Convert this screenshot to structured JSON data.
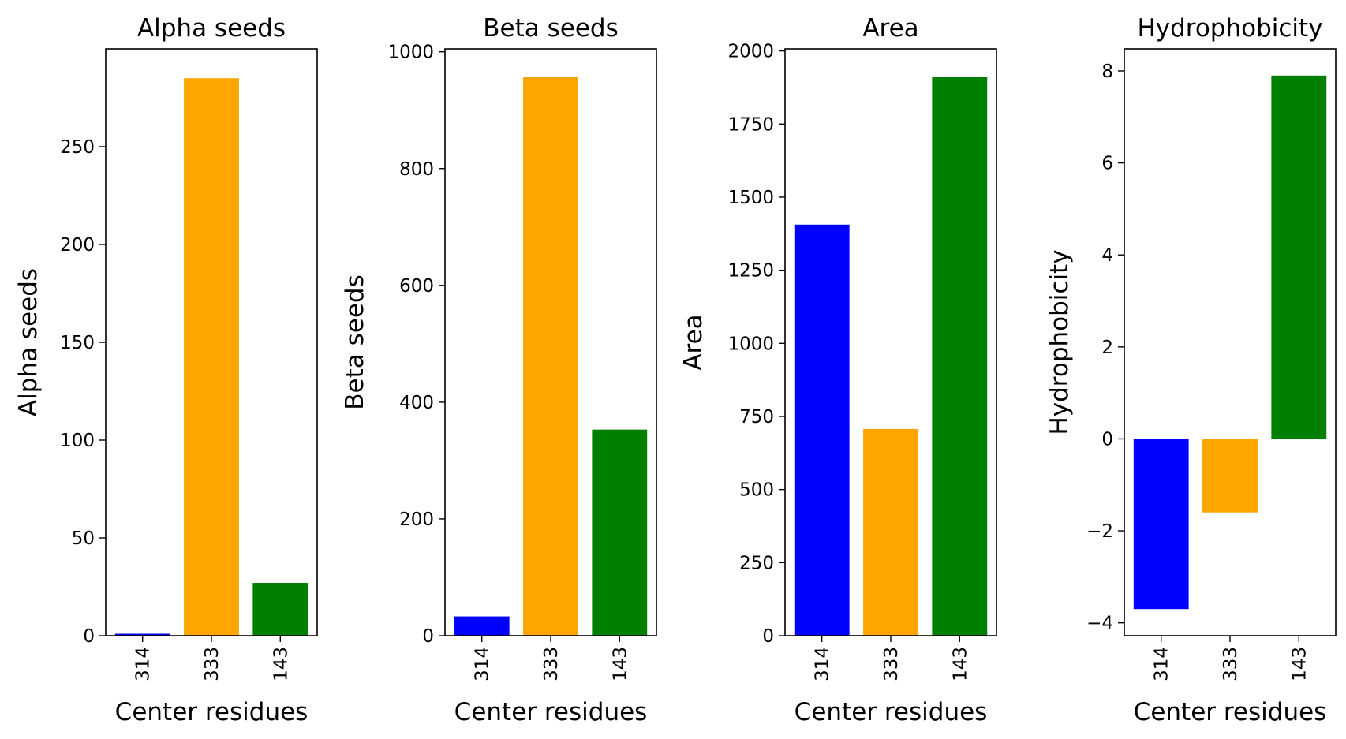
{
  "colors": {
    "bar_colors": [
      "#0000ff",
      "#ffa500",
      "#008000"
    ],
    "axis": "#000000",
    "background": "#ffffff"
  },
  "chart_data": [
    {
      "type": "bar",
      "title": "Alpha seeds",
      "xlabel": "Center residues",
      "ylabel": "Alpha seeds",
      "categories": [
        "314",
        "333",
        "143"
      ],
      "values": [
        1,
        285,
        27
      ],
      "ylim": [
        0,
        300
      ],
      "yticks": [
        0,
        50,
        100,
        150,
        200,
        250
      ],
      "ytick_labels": [
        "0",
        "50",
        "100",
        "150",
        "200",
        "250"
      ],
      "grid": false
    },
    {
      "type": "bar",
      "title": "Beta seeds",
      "xlabel": "Center residues",
      "ylabel": "Beta seeds",
      "categories": [
        "314",
        "333",
        "143"
      ],
      "values": [
        33,
        957,
        353
      ],
      "ylim": [
        0,
        1005
      ],
      "yticks": [
        0,
        200,
        400,
        600,
        800,
        1000
      ],
      "ytick_labels": [
        "0",
        "200",
        "400",
        "600",
        "800",
        "1000"
      ],
      "grid": false
    },
    {
      "type": "bar",
      "title": "Area",
      "xlabel": "Center residues",
      "ylabel": "Area",
      "categories": [
        "314",
        "333",
        "143"
      ],
      "values": [
        1406,
        707,
        1912
      ],
      "ylim": [
        0,
        2007
      ],
      "yticks": [
        0,
        250,
        500,
        750,
        1000,
        1250,
        1500,
        1750,
        2000
      ],
      "ytick_labels": [
        "0",
        "250",
        "500",
        "750",
        "1000",
        "1250",
        "1500",
        "1750",
        "2000"
      ],
      "grid": false
    },
    {
      "type": "bar",
      "title": "Hydrophobicity",
      "xlabel": "Center residues",
      "ylabel": "Hydrophobicity",
      "categories": [
        "314",
        "333",
        "143"
      ],
      "values": [
        -3.7,
        -1.6,
        7.9
      ],
      "ylim": [
        -4.28,
        8.48
      ],
      "yticks": [
        -4,
        -2,
        0,
        2,
        4,
        6,
        8
      ],
      "ytick_labels": [
        "−4",
        "−2",
        "0",
        "2",
        "4",
        "6",
        "8"
      ],
      "grid": false
    }
  ]
}
